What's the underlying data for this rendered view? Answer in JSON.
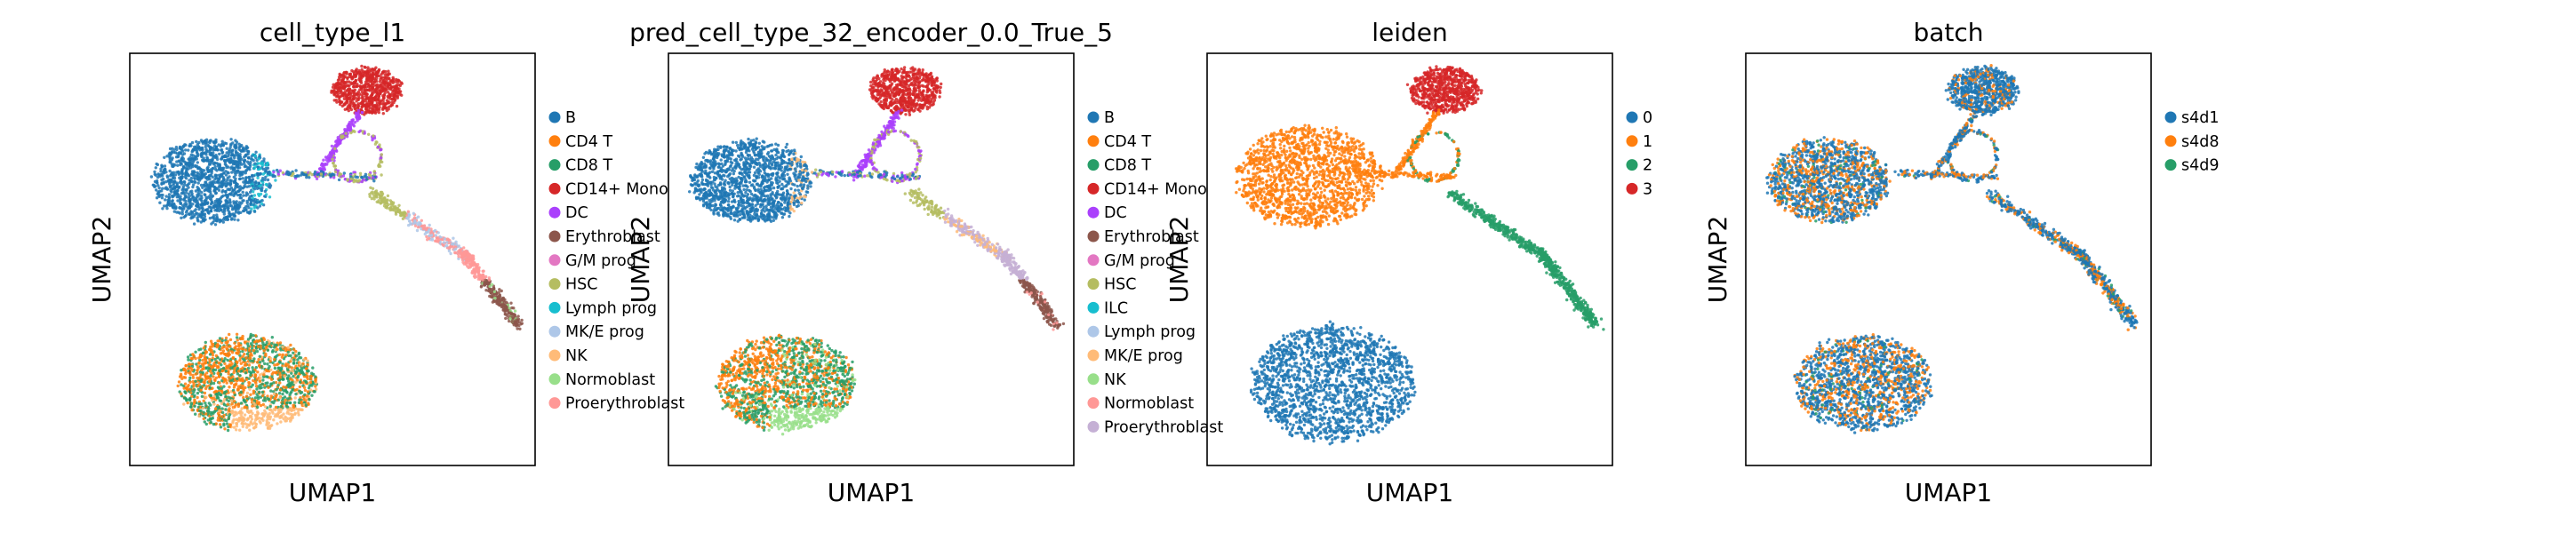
{
  "chart_data": [
    {
      "type": "scatter",
      "title": "cell_type_l1",
      "xlabel": "UMAP1",
      "ylabel": "UMAP2",
      "ticks": "none",
      "legend_placement": "right",
      "legend": [
        {
          "label": "B",
          "color": "#1f77b4"
        },
        {
          "label": "CD4 T",
          "color": "#ff7f0e"
        },
        {
          "label": "CD8 T",
          "color": "#279e68"
        },
        {
          "label": "CD14+ Mono",
          "color": "#d62728"
        },
        {
          "label": "DC",
          "color": "#aa40fc"
        },
        {
          "label": "Erythroblast",
          "color": "#8c564b"
        },
        {
          "label": "G/M prog",
          "color": "#e377c2"
        },
        {
          "label": "HSC",
          "color": "#b5bd61"
        },
        {
          "label": "Lymph prog",
          "color": "#17becf"
        },
        {
          "label": "MK/E prog",
          "color": "#aec7e8"
        },
        {
          "label": "NK",
          "color": "#ffbb78"
        },
        {
          "label": "Normoblast",
          "color": "#98df8a"
        },
        {
          "label": "Proerythroblast",
          "color": "#ff9896"
        }
      ]
    },
    {
      "type": "scatter",
      "title": "pred_cell_type_32_encoder_0.0_True_5",
      "xlabel": "UMAP1",
      "ylabel": "UMAP2",
      "ticks": "none",
      "legend_placement": "right",
      "legend": [
        {
          "label": "B",
          "color": "#1f77b4"
        },
        {
          "label": "CD4 T",
          "color": "#ff7f0e"
        },
        {
          "label": "CD8 T",
          "color": "#279e68"
        },
        {
          "label": "CD14+ Mono",
          "color": "#d62728"
        },
        {
          "label": "DC",
          "color": "#aa40fc"
        },
        {
          "label": "Erythroblast",
          "color": "#8c564b"
        },
        {
          "label": "G/M prog",
          "color": "#e377c2"
        },
        {
          "label": "HSC",
          "color": "#b5bd61"
        },
        {
          "label": "ILC",
          "color": "#17becf"
        },
        {
          "label": "Lymph prog",
          "color": "#aec7e8"
        },
        {
          "label": "MK/E prog",
          "color": "#ffbb78"
        },
        {
          "label": "NK",
          "color": "#98df8a"
        },
        {
          "label": "Normoblast",
          "color": "#ff9896"
        },
        {
          "label": "Proerythroblast",
          "color": "#c5b0d5"
        }
      ]
    },
    {
      "type": "scatter",
      "title": "leiden",
      "xlabel": "UMAP1",
      "ylabel": "UMAP2",
      "ticks": "none",
      "legend_placement": "right",
      "legend": [
        {
          "label": "0",
          "color": "#1f77b4"
        },
        {
          "label": "1",
          "color": "#ff7f0e"
        },
        {
          "label": "2",
          "color": "#279e68"
        },
        {
          "label": "3",
          "color": "#d62728"
        }
      ]
    },
    {
      "type": "scatter",
      "title": "batch",
      "xlabel": "UMAP1",
      "ylabel": "UMAP2",
      "ticks": "none",
      "legend_placement": "right",
      "legend": [
        {
          "label": "s4d1",
          "color": "#1f77b4"
        },
        {
          "label": "s4d8",
          "color": "#ff7f0e"
        },
        {
          "label": "s4d9",
          "color": "#279e68"
        }
      ]
    }
  ]
}
